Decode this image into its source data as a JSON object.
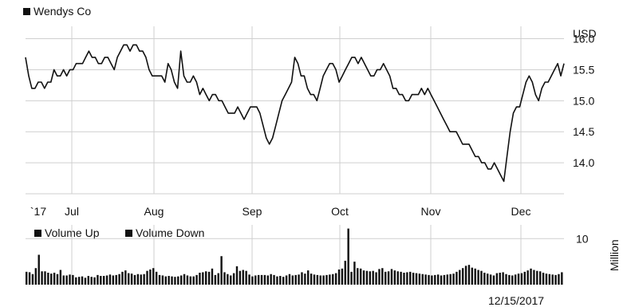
{
  "chart_data": [
    {
      "type": "line",
      "title": "",
      "series": [
        {
          "name": "Wendys Co",
          "color": "#111111",
          "values": [
            15.7,
            15.4,
            15.2,
            15.2,
            15.3,
            15.3,
            15.2,
            15.3,
            15.3,
            15.5,
            15.4,
            15.4,
            15.5,
            15.4,
            15.5,
            15.5,
            15.6,
            15.6,
            15.6,
            15.7,
            15.8,
            15.7,
            15.7,
            15.6,
            15.6,
            15.7,
            15.7,
            15.6,
            15.5,
            15.7,
            15.8,
            15.9,
            15.9,
            15.8,
            15.9,
            15.9,
            15.8,
            15.8,
            15.7,
            15.5,
            15.4,
            15.4,
            15.4,
            15.4,
            15.3,
            15.6,
            15.5,
            15.3,
            15.2,
            15.8,
            15.4,
            15.3,
            15.3,
            15.4,
            15.3,
            15.1,
            15.2,
            15.1,
            15.0,
            15.1,
            15.1,
            15.0,
            15.0,
            14.9,
            14.8,
            14.8,
            14.8,
            14.9,
            14.8,
            14.7,
            14.8,
            14.9,
            14.9,
            14.9,
            14.8,
            14.6,
            14.4,
            14.3,
            14.4,
            14.6,
            14.8,
            15.0,
            15.1,
            15.2,
            15.3,
            15.7,
            15.6,
            15.4,
            15.4,
            15.2,
            15.1,
            15.1,
            15.0,
            15.2,
            15.4,
            15.5,
            15.6,
            15.6,
            15.5,
            15.3,
            15.4,
            15.5,
            15.6,
            15.7,
            15.7,
            15.6,
            15.7,
            15.6,
            15.5,
            15.4,
            15.4,
            15.5,
            15.5,
            15.6,
            15.5,
            15.4,
            15.2,
            15.2,
            15.1,
            15.1,
            15.0,
            15.0,
            15.1,
            15.1,
            15.1,
            15.2,
            15.1,
            15.2,
            15.1,
            15.0,
            14.9,
            14.8,
            14.7,
            14.6,
            14.5,
            14.5,
            14.5,
            14.4,
            14.3,
            14.3,
            14.3,
            14.2,
            14.1,
            14.1,
            14.0,
            14.0,
            13.9,
            13.9,
            14.0,
            13.9,
            13.8,
            13.7,
            14.1,
            14.5,
            14.8,
            14.9,
            14.9,
            15.1,
            15.3,
            15.4,
            15.3,
            15.1,
            15.0,
            15.2,
            15.3,
            15.3,
            15.4,
            15.5,
            15.6,
            15.4,
            15.6
          ]
        }
      ],
      "x_labels": [
        "`17",
        "Jul",
        "Aug",
        "Sep",
        "Oct",
        "Nov",
        "Dec"
      ],
      "ylabel": "USD",
      "y_ticks": [
        14.0,
        14.5,
        15.0,
        15.5,
        16.0
      ],
      "ylim": [
        13.5,
        16.2
      ],
      "grid": true,
      "legend": "top-left"
    },
    {
      "type": "bar",
      "title": "",
      "series": [
        {
          "name": "Volume Up",
          "color": "#111111"
        },
        {
          "name": "Volume Down",
          "color": "#111111"
        }
      ],
      "values": [
        2.8,
        2.7,
        2.3,
        3.6,
        6.5,
        2.9,
        2.9,
        2.6,
        2.4,
        2.6,
        2.3,
        3.2,
        2.0,
        2.0,
        2.2,
        2.1,
        1.6,
        1.7,
        1.8,
        1.5,
        1.9,
        1.7,
        1.6,
        2.1,
        1.9,
        1.9,
        2.0,
        2.2,
        2.0,
        2.1,
        2.3,
        2.8,
        3.1,
        2.5,
        2.4,
        2.1,
        2.3,
        2.2,
        2.3,
        3.0,
        3.3,
        3.6,
        2.8,
        2.1,
        2.0,
        1.8,
        1.9,
        1.8,
        1.7,
        1.8,
        2.0,
        2.3,
        2.0,
        1.8,
        1.8,
        2.1,
        2.6,
        2.7,
        2.9,
        2.8,
        3.5,
        2.1,
        2.5,
        6.2,
        2.7,
        2.3,
        2.0,
        2.5,
        4.0,
        3.0,
        3.2,
        3.0,
        2.2,
        1.8,
        2.0,
        2.1,
        2.1,
        2.1,
        2.0,
        2.3,
        2.1,
        1.8,
        1.9,
        1.7,
        2.0,
        2.3,
        2.0,
        2.1,
        2.2,
        2.7,
        2.4,
        3.1,
        2.4,
        2.2,
        2.1,
        2.0,
        2.0,
        2.1,
        2.2,
        2.3,
        2.5,
        3.3,
        3.5,
        5.2,
        12.2,
        2.8,
        5.0,
        3.6,
        3.5,
        3.1,
        3.0,
        2.9,
        3.0,
        2.7,
        3.4,
        3.6,
        2.8,
        2.9,
        3.4,
        3.1,
        2.9,
        2.8,
        2.6,
        2.7,
        2.8,
        2.6,
        2.5,
        2.4,
        2.3,
        2.2,
        2.1,
        2.0,
        2.1,
        2.2,
        2.0,
        2.1,
        2.2,
        2.3,
        2.4,
        2.8,
        3.2,
        3.6,
        4.1,
        4.3,
        3.7,
        3.5,
        3.2,
        3.0,
        2.6,
        2.4,
        2.2,
        2.0,
        2.5,
        2.6,
        2.7,
        2.3,
        2.1,
        2.0,
        2.2,
        2.4,
        2.5,
        2.8,
        3.1,
        3.5,
        3.2,
        3.0,
        2.9,
        2.6,
        2.4,
        2.3,
        2.2,
        2.1,
        2.3,
        2.7
      ],
      "ylabel": "Million",
      "y_ticks": [
        10
      ],
      "ylim": [
        0,
        13
      ],
      "grid": true,
      "legend": "top-left"
    }
  ],
  "date_label": "12/15/2017"
}
